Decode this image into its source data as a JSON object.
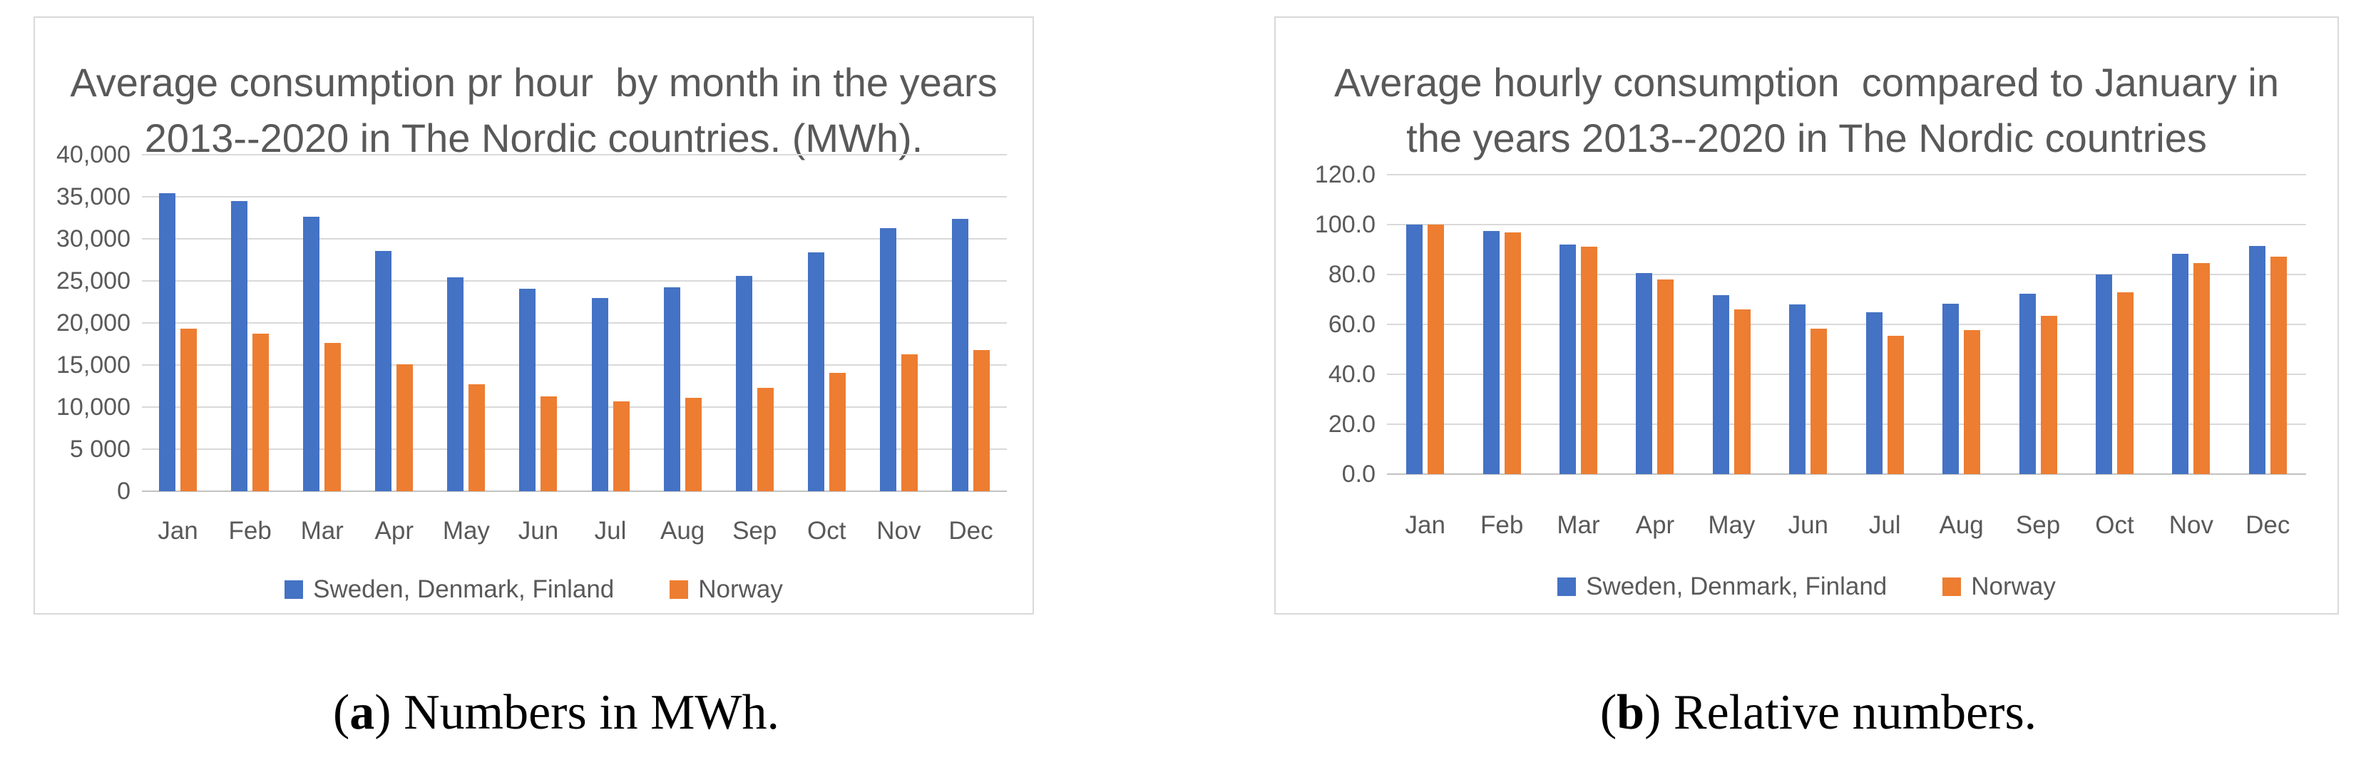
{
  "colors": {
    "series_blue": "#4472C4",
    "series_orange": "#ED7D31",
    "grid": "#D9D9D9",
    "axis_line": "#C2C2C2",
    "text_gray": "#595959",
    "panel_border": "#D9D9D9"
  },
  "chart_data": [
    {
      "type": "bar",
      "title_lines": [
        "Average consumption pr hour  by month in the years",
        "2013--2020 in The Nordic countries. (MWh)."
      ],
      "categories": [
        "Jan",
        "Feb",
        "Mar",
        "Apr",
        "May",
        "Jun",
        "Jul",
        "Aug",
        "Sep",
        "Oct",
        "Nov",
        "Dec"
      ],
      "series": [
        {
          "name": "Sweden, Denmark, Finland",
          "color": "#4472C4",
          "values": [
            35400,
            34500,
            32600,
            28600,
            25400,
            24100,
            23000,
            24200,
            25600,
            28400,
            31300,
            32400
          ]
        },
        {
          "name": "Norway",
          "color": "#ED7D31",
          "values": [
            19300,
            18700,
            17600,
            15100,
            12700,
            11300,
            10700,
            11100,
            12300,
            14100,
            16300,
            16800
          ]
        }
      ],
      "ylabel": "",
      "xlabel": "",
      "ylim": [
        0,
        40000
      ],
      "y_tick_labels_top_to_bottom": [
        "40,000",
        "35,000",
        "30,000",
        "25,000",
        "20,000",
        "15,000",
        "10,000",
        "5 000",
        "0"
      ],
      "grid": true,
      "legend_position": "bottom",
      "caption": {
        "open": "(",
        "letter": "a",
        "rest": ") Numbers in MWh."
      }
    },
    {
      "type": "bar",
      "title_lines": [
        "Average hourly consumption  compared to January in",
        "the years 2013--2020 in The Nordic countries"
      ],
      "categories": [
        "Jan",
        "Feb",
        "Mar",
        "Apr",
        "May",
        "Jun",
        "Jul",
        "Aug",
        "Sep",
        "Oct",
        "Nov",
        "Dec"
      ],
      "series": [
        {
          "name": "Sweden, Denmark, Finland",
          "color": "#4472C4",
          "values": [
            100.0,
            97.3,
            91.9,
            80.7,
            71.7,
            68.0,
            64.9,
            68.2,
            72.3,
            80.1,
            88.3,
            91.3
          ]
        },
        {
          "name": "Norway",
          "color": "#ED7D31",
          "values": [
            100.0,
            96.9,
            91.2,
            78.1,
            65.9,
            58.4,
            55.4,
            57.6,
            63.5,
            73.0,
            84.5,
            87.1
          ]
        }
      ],
      "ylabel": "",
      "xlabel": "",
      "ylim": [
        0,
        120
      ],
      "y_tick_labels_top_to_bottom": [
        "120.0",
        "100.0",
        "80.0",
        "60.0",
        "40.0",
        "20.0",
        "0.0"
      ],
      "grid": true,
      "legend_position": "bottom",
      "caption": {
        "open": "(",
        "letter": "b",
        "rest": ") Relative numbers."
      }
    }
  ]
}
